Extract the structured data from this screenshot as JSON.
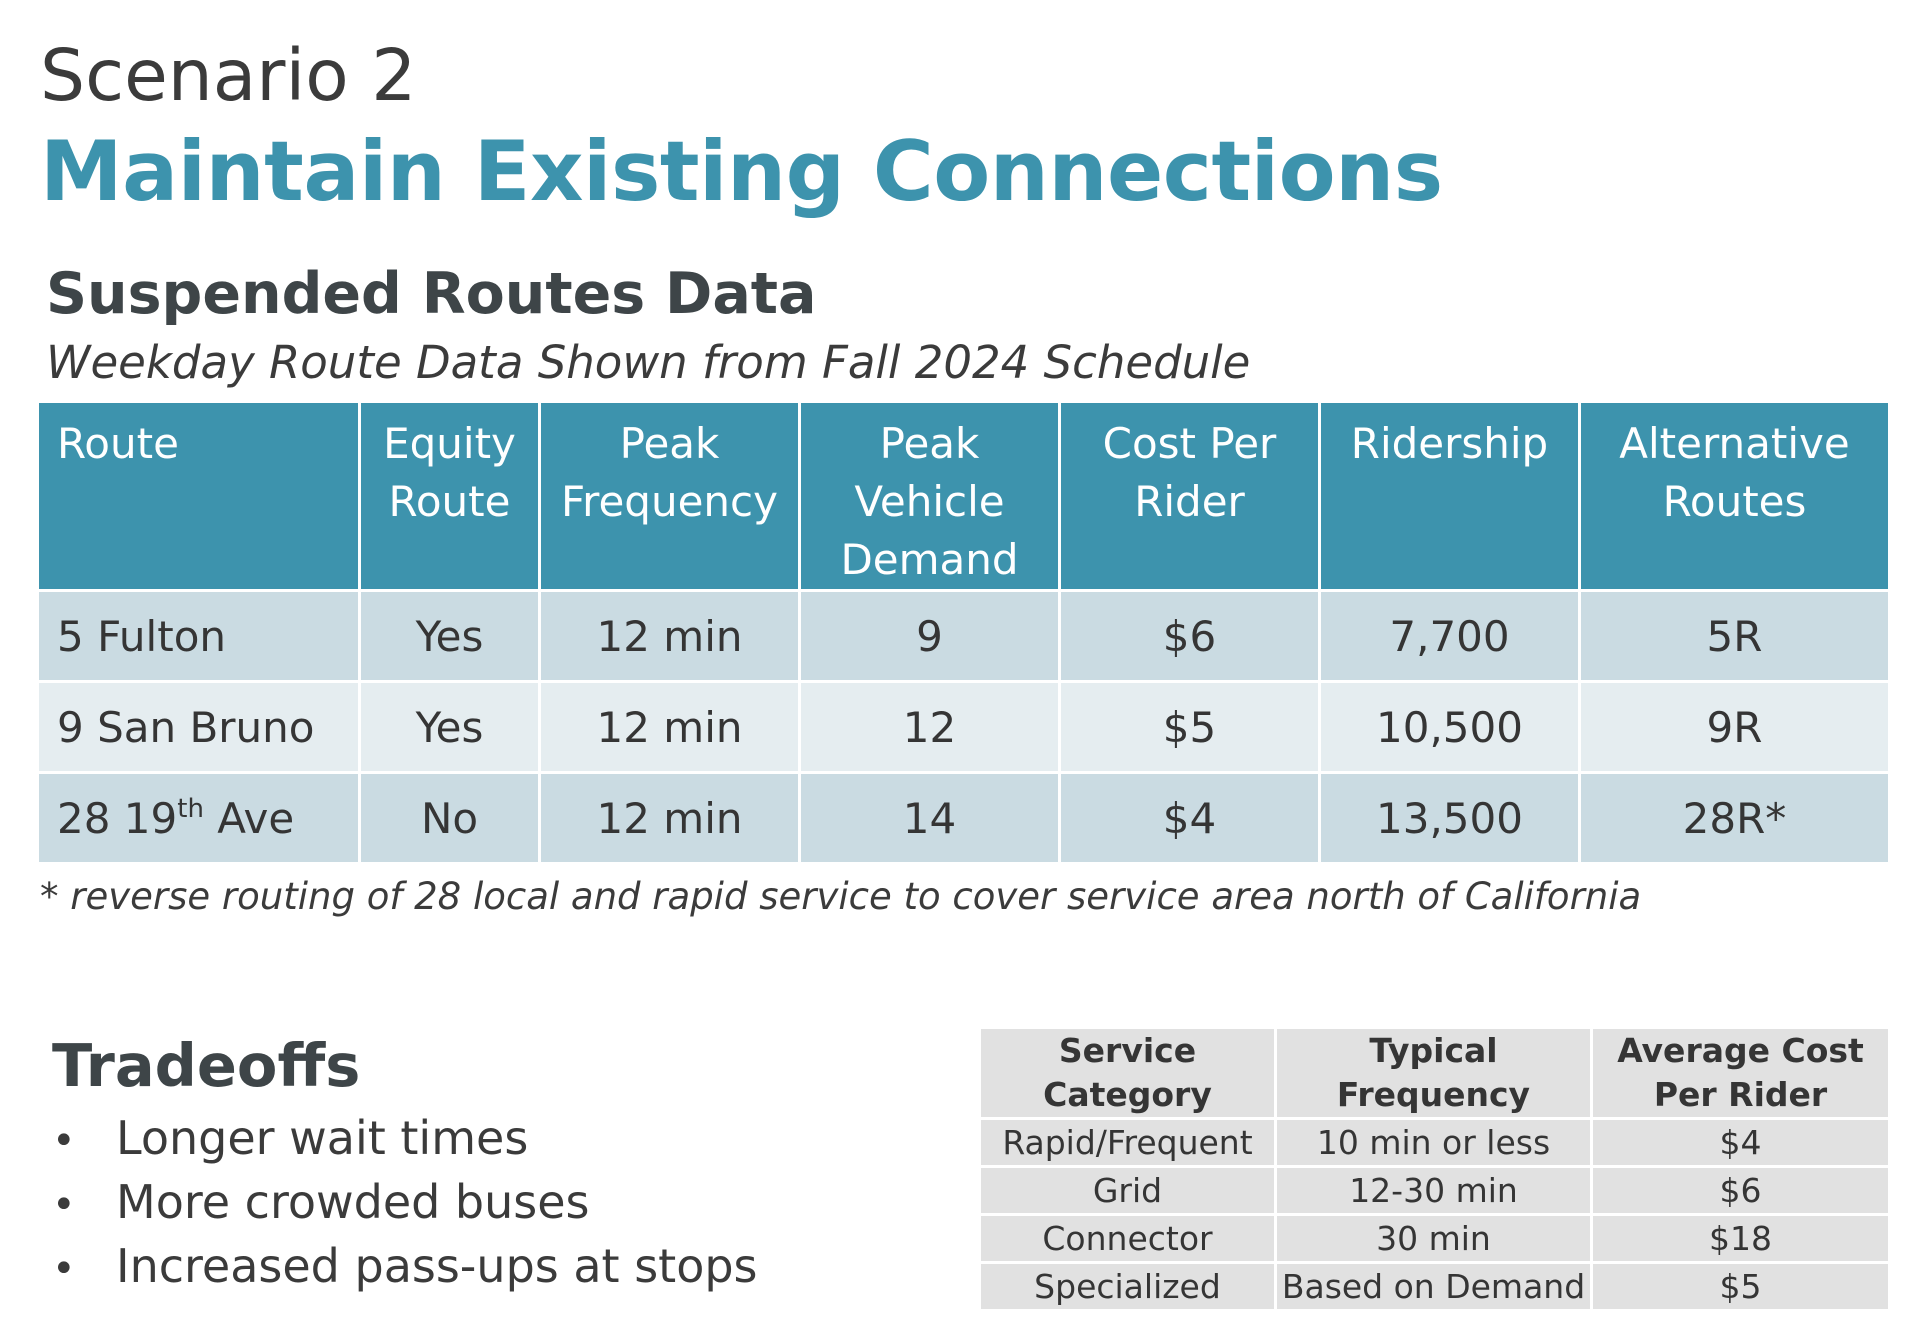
{
  "header": {
    "scenario": "Scenario 2",
    "title": "Maintain Existing Connections"
  },
  "section": {
    "title": "Suspended Routes Data",
    "subtitle": "Weekday Route Data Shown from Fall 2024 Schedule"
  },
  "routes_table": {
    "columns": [
      [
        "Route"
      ],
      [
        "Equity",
        "Route"
      ],
      [
        "Peak",
        "Frequency"
      ],
      [
        "Peak",
        "Vehicle",
        "Demand"
      ],
      [
        "Cost Per",
        "Rider"
      ],
      [
        "Ridership"
      ],
      [
        "Alternative",
        "Routes"
      ]
    ],
    "rows": [
      {
        "route": "5 Fulton",
        "route_sup": "",
        "route_suffix": "",
        "equity": "Yes",
        "frequency": "12 min",
        "vehicles": "9",
        "cost": "$6",
        "ridership": "7,700",
        "alternative": "5R"
      },
      {
        "route": "9 San Bruno",
        "route_sup": "",
        "route_suffix": "",
        "equity": "Yes",
        "frequency": "12 min",
        "vehicles": "12",
        "cost": "$5",
        "ridership": "10,500",
        "alternative": "9R"
      },
      {
        "route": "28 19",
        "route_sup": "th",
        "route_suffix": " Ave",
        "equity": "No",
        "frequency": "12 min",
        "vehicles": "14",
        "cost": "$4",
        "ridership": "13,500",
        "alternative": "28R*"
      }
    ]
  },
  "footnote": "* reverse routing of 28 local and rapid service to cover service area north of California",
  "tradeoffs": {
    "title": "Tradeoffs",
    "bullet": "•",
    "items": [
      "Longer wait times",
      "More crowded buses",
      "Increased pass-ups at stops"
    ]
  },
  "service_table": {
    "columns": [
      [
        "Service",
        "Category"
      ],
      [
        "Typical",
        "Frequency"
      ],
      [
        "Average Cost",
        "Per Rider"
      ]
    ],
    "rows": [
      [
        "Rapid/Frequent",
        "10 min or less",
        "$4"
      ],
      [
        "Grid",
        "12-30 min",
        "$6"
      ],
      [
        "Connector",
        "30 min",
        "$18"
      ],
      [
        "Specialized",
        "Based on Demand",
        "$5"
      ]
    ]
  }
}
